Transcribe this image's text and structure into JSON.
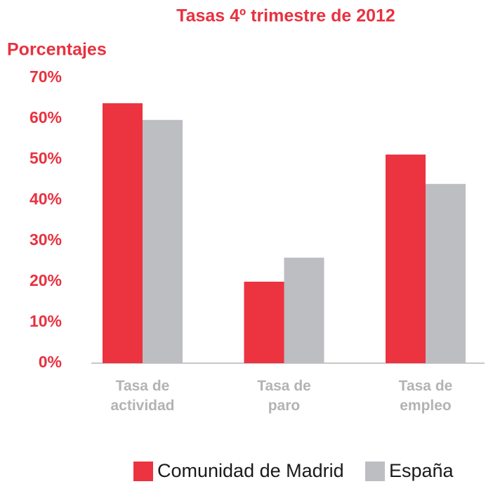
{
  "chart_data": {
    "type": "bar",
    "title": "Tasas 4º trimestre de 2012",
    "y_label": "Porcentajes",
    "categories": [
      "Tasa de actividad",
      "Tasa de paro",
      "Tasa de empleo"
    ],
    "series": [
      {
        "name": "Comunidad de Madrid",
        "color": "#ec3340",
        "values": [
          63.8,
          20.0,
          51.2
        ]
      },
      {
        "name": "España",
        "color": "#bdbec2",
        "values": [
          59.7,
          25.9,
          44.0
        ]
      }
    ],
    "ylim": [
      0,
      70
    ],
    "yticks": [
      {
        "value": 0,
        "label": "0%"
      },
      {
        "value": 10,
        "label": "10%"
      },
      {
        "value": 20,
        "label": "20%"
      },
      {
        "value": 30,
        "label": "30%"
      },
      {
        "value": 40,
        "label": "40%"
      },
      {
        "value": 50,
        "label": "50%"
      },
      {
        "value": 60,
        "label": "60%"
      },
      {
        "value": 70,
        "label": "70%"
      }
    ],
    "grid": false,
    "legend": "bottom"
  }
}
